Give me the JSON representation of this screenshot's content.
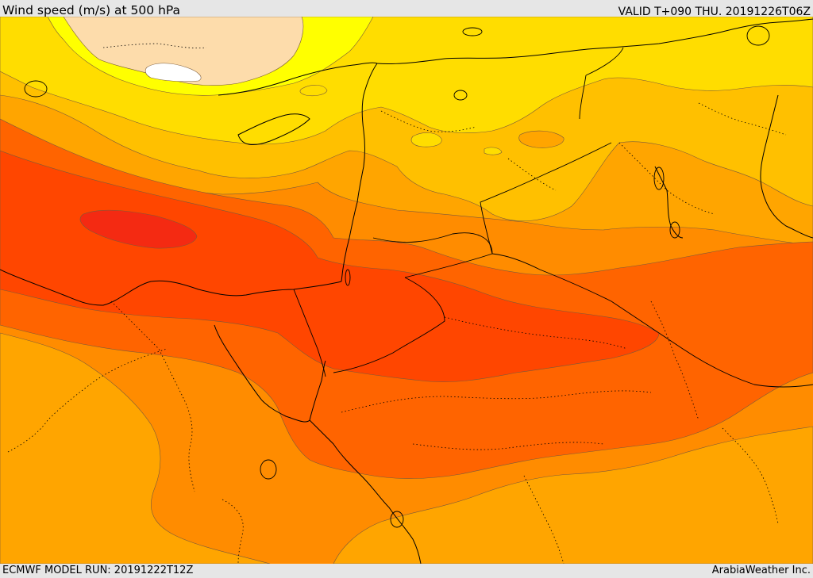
{
  "header": {
    "title": "Wind speed (m/s) at 500 hPa",
    "valid": "VALID T+090 THU. 20191226T06Z"
  },
  "footer": {
    "model_run": "ECMWF MODEL RUN: 20191222T12Z",
    "credit": "ArabiaWeather Inc."
  },
  "map": {
    "variable": "wind speed",
    "level": "500 hPa",
    "palette": {
      "white": "#ffffff",
      "pale": "#fddcab",
      "yellow": "#ffff00",
      "gold": "#ffdd00",
      "amber": "#ffc000",
      "orange_light": "#ffa500",
      "orange": "#ff8c00",
      "orange_dark": "#ff6400",
      "red_orange": "#ff4600",
      "red": "#f42a12"
    }
  }
}
